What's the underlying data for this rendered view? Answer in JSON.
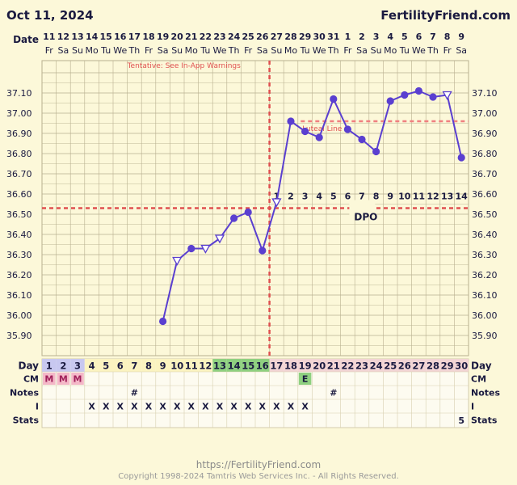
{
  "header": {
    "chart_date": "Oct 11, 2024",
    "site": "FertilityFriend.com",
    "date_label": "Date",
    "dates": [
      "11",
      "12",
      "13",
      "14",
      "15",
      "16",
      "17",
      "18",
      "19",
      "20",
      "21",
      "22",
      "23",
      "24",
      "25",
      "26",
      "27",
      "28",
      "29",
      "30",
      "31",
      "1",
      "2",
      "3",
      "4",
      "5",
      "6",
      "7",
      "8",
      "9"
    ],
    "weekdays": [
      "Fr",
      "Sa",
      "Su",
      "Mo",
      "Tu",
      "We",
      "Th",
      "Fr",
      "Sa",
      "Su",
      "Mo",
      "Tu",
      "We",
      "Th",
      "Fr",
      "Sa",
      "Su",
      "Mo",
      "Tu",
      "We",
      "Th",
      "Fr",
      "Sa",
      "Su",
      "Mo",
      "Tu",
      "We",
      "Th",
      "Fr",
      "Sa"
    ]
  },
  "chart_data": {
    "type": "line",
    "warning_text": "Tentative: See In-App Warnings",
    "ylim": [
      35.8,
      37.2
    ],
    "ytick_labels": [
      "37.10",
      "37.00",
      "36.90",
      "36.80",
      "36.70",
      "36.60",
      "36.50",
      "36.40",
      "36.30",
      "36.20",
      "36.10",
      "36.00",
      "35.90"
    ],
    "coverline": 36.53,
    "ovulation_day": 16,
    "luteal_label": "Luteal Line",
    "luteal_line_value": 36.96,
    "luteal_line_from_day": 19,
    "dpo_label": "DPO",
    "dpo_numbers": [
      "1",
      "2",
      "3",
      "4",
      "5",
      "6",
      "7",
      "8",
      "9",
      "10",
      "11",
      "12",
      "13",
      "14"
    ],
    "dpo_from_day": 17,
    "series": [
      {
        "points": [
          {
            "day": 9,
            "temp": 35.97,
            "marker": "circle"
          },
          {
            "day": 10,
            "temp": 36.27,
            "marker": "open-triangle"
          },
          {
            "day": 11,
            "temp": 36.33,
            "marker": "circle"
          },
          {
            "day": 12,
            "temp": 36.33,
            "marker": "open-triangle"
          },
          {
            "day": 13,
            "temp": 36.38,
            "marker": "open-triangle"
          },
          {
            "day": 14,
            "temp": 36.48,
            "marker": "circle"
          },
          {
            "day": 15,
            "temp": 36.51,
            "marker": "circle"
          },
          {
            "day": 16,
            "temp": 36.32,
            "marker": "circle"
          },
          {
            "day": 17,
            "temp": 36.56,
            "marker": "open-triangle"
          },
          {
            "day": 18,
            "temp": 36.96,
            "marker": "circle"
          },
          {
            "day": 19,
            "temp": 36.91,
            "marker": "circle"
          },
          {
            "day": 20,
            "temp": 36.88,
            "marker": "circle"
          },
          {
            "day": 21,
            "temp": 37.07,
            "marker": "circle"
          },
          {
            "day": 22,
            "temp": 36.92,
            "marker": "circle"
          },
          {
            "day": 23,
            "temp": 36.87,
            "marker": "circle"
          },
          {
            "day": 24,
            "temp": 36.81,
            "marker": "circle"
          },
          {
            "day": 25,
            "temp": 37.06,
            "marker": "circle"
          },
          {
            "day": 26,
            "temp": 37.09,
            "marker": "circle"
          },
          {
            "day": 27,
            "temp": 37.11,
            "marker": "circle"
          },
          {
            "day": 28,
            "temp": 37.08,
            "marker": "circle"
          },
          {
            "day": 29,
            "temp": 37.09,
            "marker": "open-triangle"
          },
          {
            "day": 30,
            "temp": 36.78,
            "marker": "circle"
          }
        ]
      }
    ]
  },
  "rows": {
    "day_label": "Day",
    "cm_label": "CM",
    "notes_label": "Notes",
    "i_label": "I",
    "stats_label": "Stats",
    "days": [
      "1",
      "2",
      "3",
      "4",
      "5",
      "6",
      "7",
      "8",
      "9",
      "10",
      "11",
      "12",
      "13",
      "14",
      "15",
      "16",
      "17",
      "18",
      "19",
      "20",
      "21",
      "22",
      "23",
      "24",
      "25",
      "26",
      "27",
      "28",
      "29",
      "30"
    ],
    "cm": [
      {
        "day": 1,
        "text": "M"
      },
      {
        "day": 2,
        "text": "M"
      },
      {
        "day": 3,
        "text": "M"
      },
      {
        "day": 19,
        "text": "E"
      }
    ],
    "notes": [
      {
        "day": 7,
        "text": "#"
      },
      {
        "day": 21,
        "text": "#"
      }
    ],
    "i_marks": [
      {
        "day": 4,
        "text": "X"
      },
      {
        "day": 5,
        "text": "X"
      },
      {
        "day": 6,
        "text": "X"
      },
      {
        "day": 7,
        "text": "X"
      },
      {
        "day": 8,
        "text": "X"
      },
      {
        "day": 9,
        "text": "X"
      },
      {
        "day": 10,
        "text": "X"
      },
      {
        "day": 11,
        "text": "X"
      },
      {
        "day": 12,
        "text": "X"
      },
      {
        "day": 13,
        "text": "X"
      },
      {
        "day": 14,
        "text": "X"
      },
      {
        "day": 15,
        "text": "X"
      },
      {
        "day": 16,
        "text": "X"
      },
      {
        "day": 17,
        "text": "X"
      },
      {
        "day": 18,
        "text": "X"
      },
      {
        "day": 19,
        "text": "X"
      }
    ],
    "stats": [
      {
        "day": 30,
        "text": "5"
      }
    ]
  },
  "footer": {
    "url": "https://FertilityFriend.com",
    "copyright": "Copyright 1998-2024 Tamtris Web Services Inc. - All Rights Reserved."
  },
  "colors": {
    "background": "#fcf8d9",
    "grid": "#b8b090",
    "series": "#5a3fd0",
    "coverline": "#e05050",
    "menses_cell": "#f4b8c8",
    "fertile_cell": "#8fd080",
    "period_day_cell": "#c8c8f0",
    "luteal_day_cell": "#f2d4d4",
    "text_dark": "#1a1a40"
  }
}
